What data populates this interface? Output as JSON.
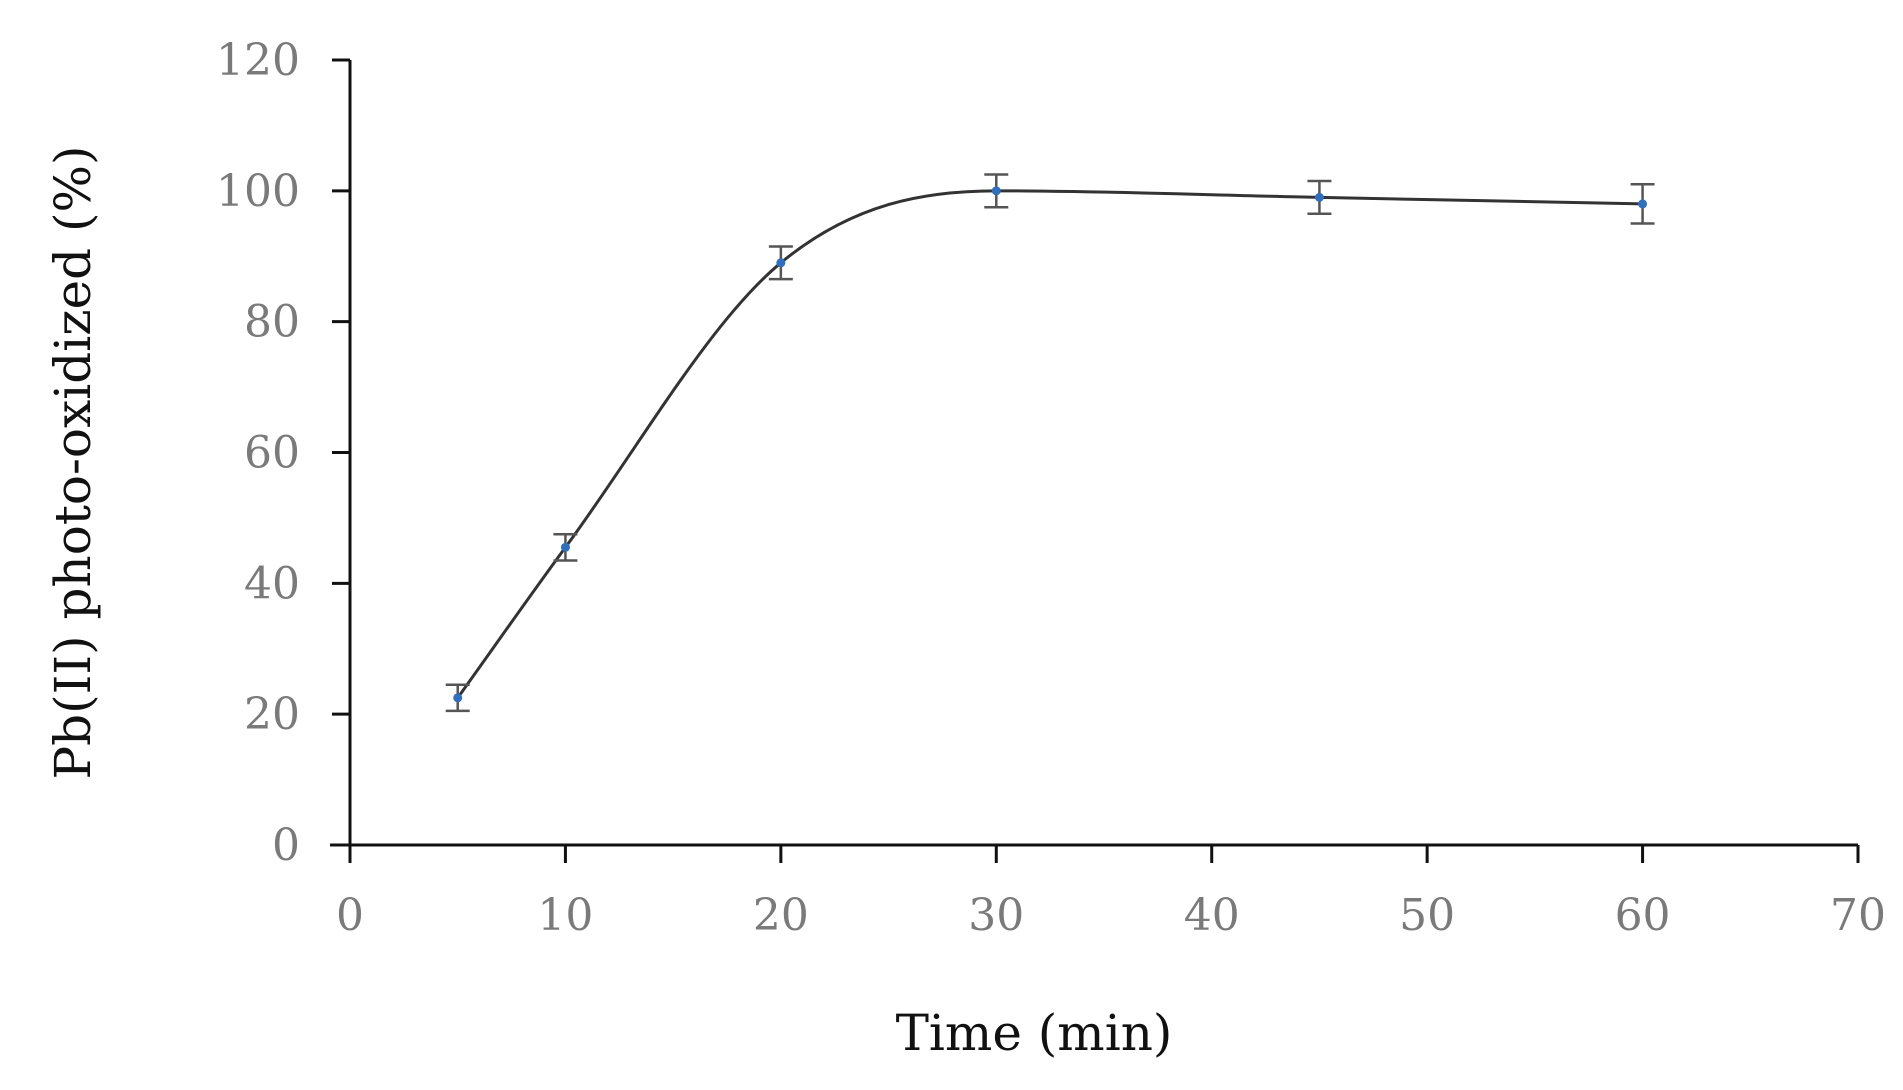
{
  "chart_data": {
    "type": "line",
    "title": "",
    "xlabel": "Time (min)",
    "ylabel": "Pb(II) photo-oxidized (%)",
    "xlim": [
      0,
      70
    ],
    "ylim": [
      0,
      120
    ],
    "xticks": [
      "0",
      "10",
      "20",
      "30",
      "40",
      "50",
      "60",
      "70"
    ],
    "yticks": [
      "0",
      "20",
      "40",
      "60",
      "80",
      "100",
      "120"
    ],
    "grid": false,
    "legend": "none",
    "smooth": true,
    "series": [
      {
        "x": [
          5,
          10,
          20,
          30,
          45,
          60
        ],
        "y": [
          22.5,
          45.5,
          89,
          100,
          99,
          98
        ],
        "error": [
          2,
          2,
          2.5,
          2.5,
          2.5,
          3
        ],
        "marker_color": "#2f6fbf",
        "line_color": "#333333"
      }
    ]
  }
}
